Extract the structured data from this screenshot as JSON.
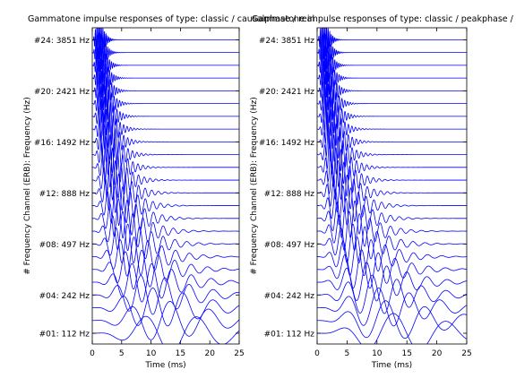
{
  "chart_data": [
    {
      "type": "line",
      "title": "Gammatone impulse responses of type: classic / causalphase / real",
      "xlabel": "Time (ms)",
      "ylabel": "# Frequency Channel (ERB): Frequency (Hz)",
      "xlim": [
        0,
        25
      ],
      "xticks": [
        "0",
        "5",
        "10",
        "15",
        "20",
        "25"
      ],
      "ytick_labels": [
        "#01:  112 Hz",
        "#04:  242 Hz",
        "#08:  497 Hz",
        "#12:  888 Hz",
        "#16: 1492 Hz",
        "#20: 2421 Hz",
        "#24: 3851 Hz"
      ],
      "ytick_channels": [
        1,
        4,
        8,
        12,
        16,
        20,
        24
      ],
      "channel_count": 24,
      "phase": "causal",
      "line_color": "#0000ff",
      "grid": false
    },
    {
      "type": "line",
      "title": "Gammatone impulse responses of type: classic / peakphase / real",
      "xlabel": "Time (ms)",
      "ylabel": "# Frequency Channel (ERB): Frequency (Hz)",
      "xlim": [
        0,
        25
      ],
      "xticks": [
        "0",
        "5",
        "10",
        "15",
        "20",
        "25"
      ],
      "ytick_labels": [
        "#01:  112 Hz",
        "#04:  242 Hz",
        "#08:  497 Hz",
        "#12:  888 Hz",
        "#16: 1492 Hz",
        "#20: 2421 Hz",
        "#24: 3851 Hz"
      ],
      "ytick_channels": [
        1,
        4,
        8,
        12,
        16,
        20,
        24
      ],
      "channel_count": 24,
      "phase": "peak",
      "line_color": "#0000ff",
      "grid": false
    }
  ]
}
